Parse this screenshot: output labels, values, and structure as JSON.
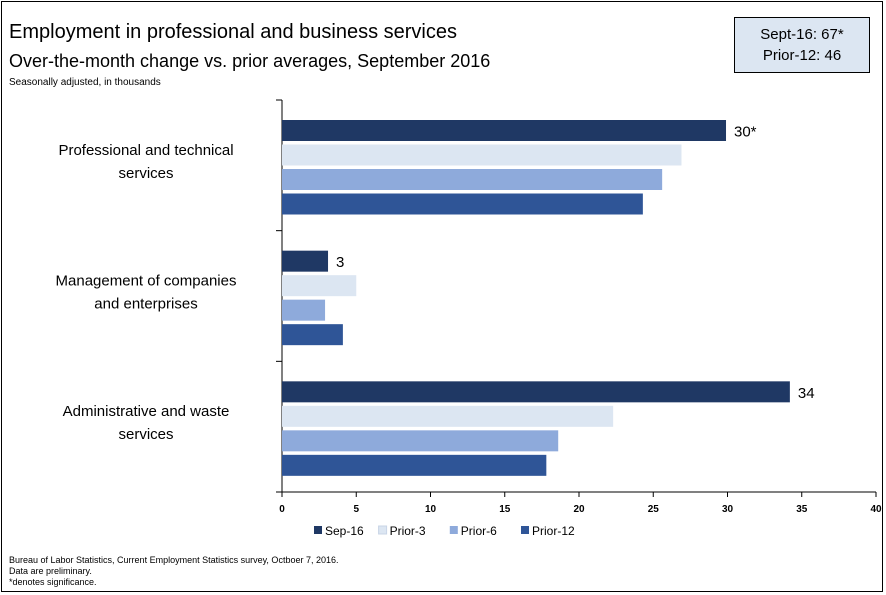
{
  "header": {
    "title": "Employment in professional and business services",
    "subtitle": "Over-the-month change vs. prior averages, September 2016",
    "note": "Seasonally adjusted, in thousands"
  },
  "stat_box": {
    "line1": "Sept-16: 67*",
    "line2": "Prior-12: 46"
  },
  "footer": {
    "line1": "Bureau of Labor Statistics, Current Employment Statistics survey, Octboer 7, 2016.",
    "line2": "Data are preliminary.",
    "line3": "*denotes significance."
  },
  "colors": {
    "Sep-16": "#1f3864",
    "Prior-3": "#dce6f2",
    "Prior-6": "#8eaadb",
    "Prior-12": "#2f5597"
  },
  "chart_data": {
    "type": "bar",
    "orientation": "horizontal",
    "categories": [
      [
        "Professional and technical",
        "services"
      ],
      [
        "Management of companies",
        "and enterprises"
      ],
      [
        "Administrative and waste",
        "services"
      ]
    ],
    "series": [
      {
        "name": "Sep-16",
        "values": [
          29.9,
          3.1,
          34.2
        ],
        "labels": [
          "30*",
          "3",
          "34"
        ]
      },
      {
        "name": "Prior-3",
        "values": [
          26.9,
          5.0,
          22.3
        ],
        "labels": [
          "",
          "",
          ""
        ]
      },
      {
        "name": "Prior-6",
        "values": [
          25.6,
          2.9,
          18.6
        ],
        "labels": [
          "",
          "",
          ""
        ]
      },
      {
        "name": "Prior-12",
        "values": [
          24.3,
          4.1,
          17.8
        ],
        "labels": [
          "",
          "",
          ""
        ]
      }
    ],
    "xlim": [
      0,
      40
    ],
    "xticks": [
      0,
      5,
      10,
      15,
      20,
      25,
      30,
      35,
      40
    ],
    "legend_position": "bottom",
    "grid": false
  }
}
